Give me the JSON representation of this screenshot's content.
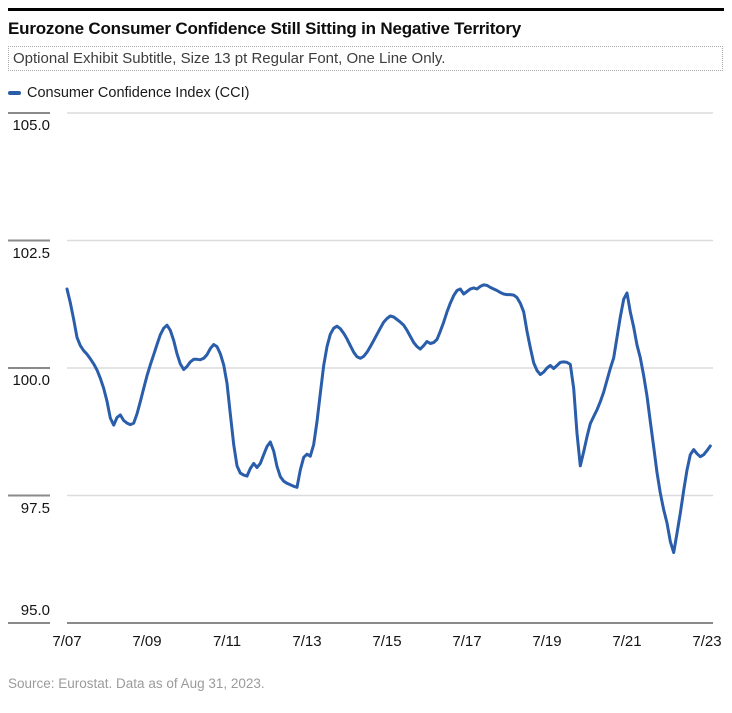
{
  "header": {
    "title": "Eurozone Consumer Confidence Still Sitting in Negative Territory",
    "subtitle": "Optional Exhibit Subtitle, Size 13 pt Regular Font, One Line Only."
  },
  "legend": {
    "label": "Consumer Confidence Index (CCI)",
    "swatch_color": "#2a5daa"
  },
  "source": "Source: Eurostat. Data as of Aug 31, 2023.",
  "chart_data": {
    "type": "line",
    "title": "Eurozone Consumer Confidence Still Sitting in Negative Territory",
    "xlabel": "",
    "ylabel": "",
    "ylim": [
      95.0,
      105.0
    ],
    "grid": "horizontal",
    "legend_position": "top-left",
    "x_tick_labels": [
      "7/07",
      "7/09",
      "7/11",
      "7/13",
      "7/15",
      "7/17",
      "7/19",
      "7/21",
      "7/23"
    ],
    "x_tick_month_index": [
      0,
      24,
      48,
      72,
      96,
      120,
      144,
      168,
      192
    ],
    "y_ticks": [
      {
        "label": "105.0",
        "value": 105.0
      },
      {
        "label": "102.5",
        "value": 102.5
      },
      {
        "label": "100.0",
        "value": 100.0
      },
      {
        "label": "97.5",
        "value": 97.5
      },
      {
        "label": "95.0",
        "value": 95.0
      }
    ],
    "series": [
      {
        "name": "Consumer Confidence Index (CCI)",
        "color": "#2a5daa",
        "frequency": "monthly",
        "start": "7/2007",
        "end": "8/2023",
        "values": [
          101.55,
          101.28,
          100.95,
          100.6,
          100.44,
          100.34,
          100.27,
          100.18,
          100.08,
          99.96,
          99.8,
          99.6,
          99.35,
          99.02,
          98.88,
          99.03,
          99.08,
          98.97,
          98.92,
          98.89,
          98.92,
          99.1,
          99.34,
          99.6,
          99.85,
          100.06,
          100.26,
          100.46,
          100.65,
          100.78,
          100.84,
          100.74,
          100.54,
          100.28,
          100.08,
          99.97,
          100.03,
          100.12,
          100.17,
          100.17,
          100.16,
          100.19,
          100.26,
          100.38,
          100.46,
          100.42,
          100.28,
          100.06,
          99.7,
          99.1,
          98.5,
          98.08,
          97.94,
          97.9,
          97.88,
          98.03,
          98.13,
          98.05,
          98.13,
          98.3,
          98.46,
          98.55,
          98.37,
          98.07,
          97.87,
          97.78,
          97.74,
          97.71,
          97.68,
          97.66,
          98.0,
          98.25,
          98.31,
          98.27,
          98.5,
          98.95,
          99.5,
          100.05,
          100.42,
          100.66,
          100.78,
          100.82,
          100.77,
          100.68,
          100.57,
          100.44,
          100.31,
          100.22,
          100.19,
          100.23,
          100.31,
          100.42,
          100.54,
          100.66,
          100.78,
          100.9,
          100.97,
          101.02,
          101.0,
          100.95,
          100.9,
          100.84,
          100.74,
          100.62,
          100.5,
          100.42,
          100.37,
          100.44,
          100.52,
          100.48,
          100.5,
          100.56,
          100.72,
          100.9,
          101.1,
          101.27,
          101.42,
          101.52,
          101.55,
          101.45,
          101.5,
          101.55,
          101.57,
          101.55,
          101.6,
          101.63,
          101.62,
          101.58,
          101.55,
          101.52,
          101.48,
          101.45,
          101.44,
          101.44,
          101.43,
          101.38,
          101.27,
          101.1,
          100.72,
          100.4,
          100.1,
          99.95,
          99.87,
          99.92,
          100.0,
          100.05,
          99.99,
          100.05,
          100.11,
          100.12,
          100.11,
          100.07,
          99.6,
          98.72,
          98.08,
          98.36,
          98.65,
          98.91,
          99.05,
          99.18,
          99.34,
          99.53,
          99.76,
          99.99,
          100.2,
          100.6,
          101.0,
          101.35,
          101.47,
          101.1,
          100.8,
          100.45,
          100.2,
          99.85,
          99.45,
          98.95,
          98.45,
          97.95,
          97.55,
          97.22,
          96.96,
          96.6,
          96.38,
          96.76,
          97.15,
          97.6,
          98.0,
          98.3,
          98.4,
          98.32,
          98.26,
          98.3,
          98.38,
          98.47
        ]
      }
    ]
  }
}
